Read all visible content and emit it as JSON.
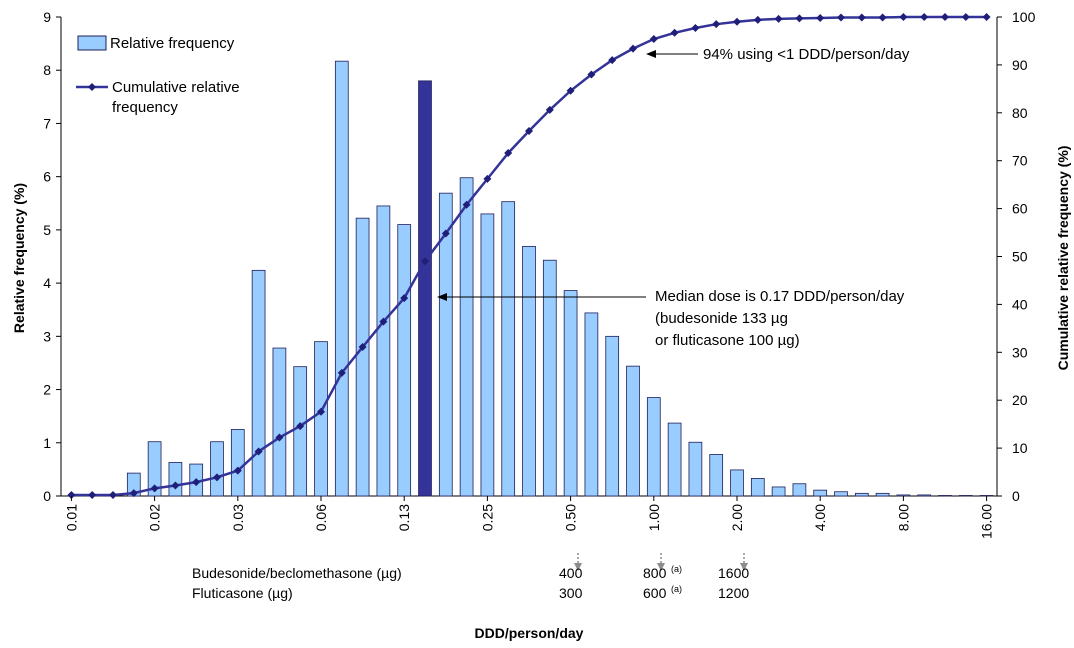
{
  "chart_data": {
    "type": "bar+line",
    "xlabel": "DDD/person/day",
    "ylabel_left": "Relative frequency (%)",
    "ylabel_right": "Cumulative relative frequency (%)",
    "ylim_left": [
      0,
      9
    ],
    "ylim_right": [
      0,
      100
    ],
    "yticks_left": [
      "0",
      "1",
      "2",
      "3",
      "4",
      "5",
      "6",
      "7",
      "8",
      "9"
    ],
    "yticks_right": [
      "0",
      "10",
      "20",
      "30",
      "40",
      "50",
      "60",
      "70",
      "80",
      "90",
      "100"
    ],
    "xtick_labels": [
      "0.01",
      "0.02",
      "0.03",
      "0.06",
      "0.13",
      "0.25",
      "0.50",
      "1.00",
      "2.00",
      "4.00",
      "8.00",
      "16.00"
    ],
    "legend": {
      "position": "top-left",
      "bar_label": "Relative frequency",
      "line_label_1": "Cumulative relative",
      "line_label_2": "frequency"
    },
    "colors": {
      "bar": "#99ccff",
      "bar_stroke": "#1f1f5a",
      "median_bar": "#333399",
      "line": "#333399",
      "marker": "#1f1f7a",
      "grey_arrow": "#8c8c8c"
    },
    "median_bin_index": 17,
    "relative_frequency": [
      0,
      0,
      0,
      0.43,
      1.02,
      0.63,
      0.6,
      1.02,
      1.25,
      4.24,
      2.78,
      2.43,
      2.9,
      8.17,
      5.22,
      5.45,
      5.1,
      7.8,
      5.69,
      5.98,
      5.3,
      5.53,
      4.69,
      4.43,
      3.86,
      3.44,
      3.0,
      2.44,
      1.85,
      1.37,
      1.01,
      0.78,
      0.49,
      0.33,
      0.17,
      0.23,
      0.11,
      0.08,
      0.05,
      0.05,
      0.02,
      0.02,
      0.01,
      0.01,
      0.01
    ],
    "cumulative_relative_frequency": [
      0.2,
      0.2,
      0.2,
      0.6,
      1.6,
      2.2,
      2.9,
      3.9,
      5.3,
      9.3,
      12.2,
      14.6,
      17.6,
      25.7,
      31.1,
      36.4,
      41.3,
      49.0,
      54.8,
      60.8,
      66.2,
      71.6,
      76.2,
      80.6,
      84.6,
      88.0,
      91.0,
      93.4,
      95.4,
      96.7,
      97.7,
      98.5,
      99.0,
      99.4,
      99.6,
      99.7,
      99.8,
      99.9,
      99.9,
      99.9,
      100.0,
      100.0,
      100.0,
      100.0,
      100.0
    ],
    "annotations": {
      "top_text": "94% using <1 DDD/person/day",
      "median_line1": "Median dose is 0.17 DDD/person/day",
      "median_line2": "(budesonide 133 µg",
      "median_line3": "or fluticasone 100 µg)"
    },
    "conversion_table": {
      "row1_label": "Budesonide/beclomethasone (µg)",
      "row2_label": "Fluticasone (µg)",
      "row1_values": [
        "400",
        "800",
        "1600"
      ],
      "row2_values": [
        "300",
        "600",
        "1200"
      ],
      "footnote_mark": "(a)"
    }
  }
}
